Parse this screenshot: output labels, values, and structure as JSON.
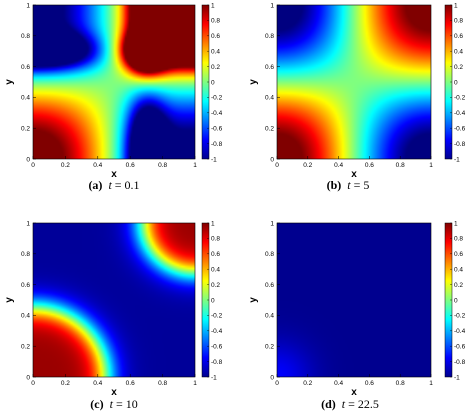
{
  "chart_data": [
    {
      "type": "heatmap",
      "panel": "a",
      "caption_letter": "(a)",
      "caption_var": "t",
      "caption_eq": "= 0.1",
      "time": 0.1,
      "xlabel": "x",
      "ylabel": "y",
      "xlim": [
        0,
        1
      ],
      "ylim": [
        0,
        1
      ],
      "x_ticks": [
        "0",
        "0.2",
        "0.4",
        "0.6",
        "0.8",
        "1"
      ],
      "y_ticks": [
        "0",
        "0.2",
        "0.4",
        "0.6",
        "0.8",
        "1"
      ],
      "colorbar": {
        "range": [
          -1,
          1
        ],
        "ticks": [
          "1",
          "0.8",
          "0.6",
          "0.4",
          "0.2",
          "0",
          "-0.2",
          "-0.4",
          "-0.6",
          "-0.8",
          "-1"
        ],
        "colormap": "jet"
      }
    },
    {
      "type": "heatmap",
      "panel": "b",
      "caption_letter": "(b)",
      "caption_var": "t",
      "caption_eq": "= 5",
      "time": 5,
      "xlabel": "x",
      "ylabel": "y",
      "xlim": [
        0,
        1
      ],
      "ylim": [
        0,
        1
      ],
      "x_ticks": [
        "0",
        "0.2",
        "0.4",
        "0.6",
        "0.8",
        "1"
      ],
      "y_ticks": [
        "0",
        "0.2",
        "0.4",
        "0.6",
        "0.8",
        "1"
      ],
      "colorbar": {
        "range": [
          -1,
          1
        ],
        "ticks": [
          "1",
          "0.8",
          "0.6",
          "0.4",
          "0.2",
          "0",
          "-0.2",
          "-0.4",
          "-0.6",
          "-0.8",
          "-1"
        ],
        "colormap": "jet"
      }
    },
    {
      "type": "heatmap",
      "panel": "c",
      "caption_letter": "(c)",
      "caption_var": "t",
      "caption_eq": "= 10",
      "time": 10,
      "xlabel": "x",
      "ylabel": "y",
      "xlim": [
        0,
        1
      ],
      "ylim": [
        0,
        1
      ],
      "x_ticks": [
        "0",
        "0.2",
        "0.4",
        "0.6",
        "0.8",
        "1"
      ],
      "y_ticks": [
        "0",
        "0.2",
        "0.4",
        "0.6",
        "0.8",
        "1"
      ],
      "colorbar": {
        "range": [
          -1,
          1
        ],
        "ticks": [
          "1",
          "0.8",
          "0.6",
          "0.4",
          "0.2",
          "0",
          "-0.2",
          "-0.4",
          "-0.6",
          "-0.8",
          "-1"
        ],
        "colormap": "jet"
      }
    },
    {
      "type": "heatmap",
      "panel": "d",
      "caption_letter": "(d)",
      "caption_var": "t",
      "caption_eq": "= 22.5",
      "time": 22.5,
      "xlabel": "x",
      "ylabel": "y",
      "xlim": [
        0,
        1
      ],
      "ylim": [
        0,
        1
      ],
      "x_ticks": [
        "0",
        "0.2",
        "0.4",
        "0.6",
        "0.8",
        "1"
      ],
      "y_ticks": [
        "0",
        "0.2",
        "0.4",
        "0.6",
        "0.8",
        "1"
      ],
      "colorbar": {
        "range": [
          -1,
          1
        ],
        "ticks": [
          "1",
          "0.8",
          "0.6",
          "0.4",
          "0.2",
          "0",
          "-0.2",
          "-0.4",
          "-0.6",
          "-0.8",
          "-1"
        ],
        "colormap": "jet"
      }
    }
  ]
}
